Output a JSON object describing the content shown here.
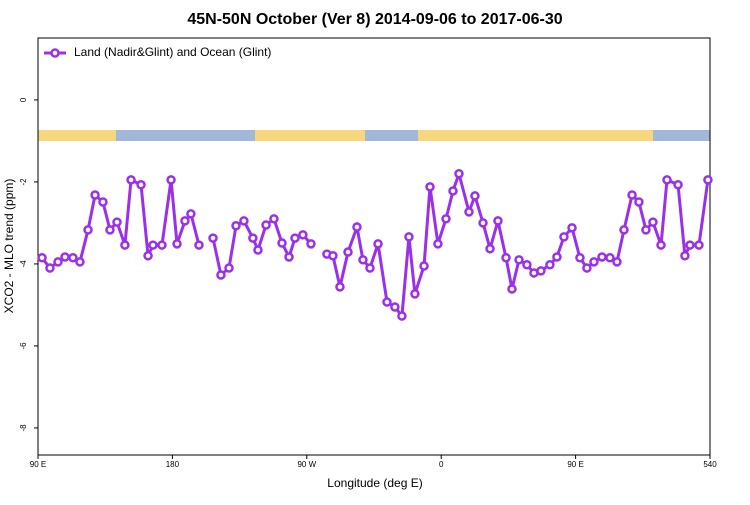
{
  "chart_data": {
    "type": "line",
    "title": "45N-50N October (Ver 8)   2014-09-06 to 2017-06-30",
    "x_label": "Longitude (deg E)",
    "y_label": "XCO2 - MLO trend (ppm)",
    "x": [
      92.7,
      98.0,
      103.4,
      108.1,
      113.4,
      118.1,
      123.5,
      128.2,
      133.5,
      138.2,
      142.9,
      148.2,
      152.3,
      159.0,
      163.7,
      167.0,
      173.0,
      179.1,
      183.1,
      188.4,
      192.4,
      197.8,
      202.5,
      207.2,
      212.5,
      217.9,
      222.6,
      227.9,
      233.9,
      237.3,
      242.7,
      248.0,
      253.4,
      258.1,
      262.1,
      267.4,
      272.8,
      277.5,
      283.5,
      287.5,
      292.2,
      297.6,
      303.6,
      307.6,
      312.3,
      317.7,
      323.7,
      329.0,
      333.7,
      338.4,
      342.4,
      348.5,
      352.5,
      357.8,
      363.2,
      367.9,
      371.9,
      378.6,
      382.6,
      388.0,
      392.7,
      398.0,
      403.4,
      407.4,
      412.1,
      417.4,
      422.1,
      426.8,
      432.8,
      437.5,
      442.2,
      447.6,
      452.9,
      457.6,
      462.3,
      467.7,
      473.0,
      477.7,
      482.4,
      487.8,
      492.4,
      497.1,
      501.8,
      507.2,
      511.2,
      518.6,
      523.2,
      526.6,
      532.6,
      538.6
    ],
    "series": [
      {
        "name": "Land (Nadir&Glint) and Ocean (Glint)",
        "color": "#9b30e8",
        "values": [
          -3.85,
          -4.1,
          -3.95,
          -3.83,
          -3.85,
          -3.95,
          -3.17,
          -2.32,
          -2.49,
          -3.17,
          -2.98,
          -3.54,
          -1.95,
          -2.07,
          -3.8,
          -3.54,
          -3.54,
          -1.95,
          -3.51,
          -2.95,
          -2.78,
          -3.54,
          null,
          -3.37,
          -4.27,
          -4.1,
          -3.07,
          -2.95,
          -3.37,
          -3.66,
          -3.05,
          -2.9,
          -3.49,
          -3.83,
          -3.37,
          -3.29,
          -3.51,
          null,
          -3.76,
          -3.8,
          -4.56,
          -3.71,
          -3.1,
          -3.9,
          -4.1,
          -3.51,
          -4.93,
          -5.05,
          -5.27,
          -3.34,
          -4.73,
          -4.05,
          -2.12,
          -3.51,
          -2.9,
          -2.22,
          -1.8,
          -2.73,
          -2.34,
          -3.0,
          -3.63,
          -2.95,
          -3.85,
          -4.61,
          -3.9,
          -4.02,
          -4.22,
          -4.17,
          -4.02,
          -3.83,
          -3.34,
          -3.12,
          -3.85,
          -4.1,
          -3.95,
          -3.83,
          -3.85,
          -3.95,
          -3.17,
          -2.32,
          -2.49,
          -3.17,
          -2.98,
          -3.54,
          -1.95,
          -2.07,
          -3.8,
          -3.54,
          -3.54,
          -1.95
        ]
      }
    ],
    "xlim": [
      90,
      540
    ],
    "xticks": [
      {
        "value": 90,
        "label": "90 E"
      },
      180,
      {
        "value": 270,
        "label": "90 W"
      },
      {
        "value": 360,
        "label": "0"
      },
      {
        "value": 450,
        "label": "90 E"
      },
      540
    ],
    "ylim": [
      -8.66,
      1.51
    ],
    "yticks": [
      0,
      -2,
      -4,
      -6,
      -8
    ],
    "legend": "top-left"
  }
}
